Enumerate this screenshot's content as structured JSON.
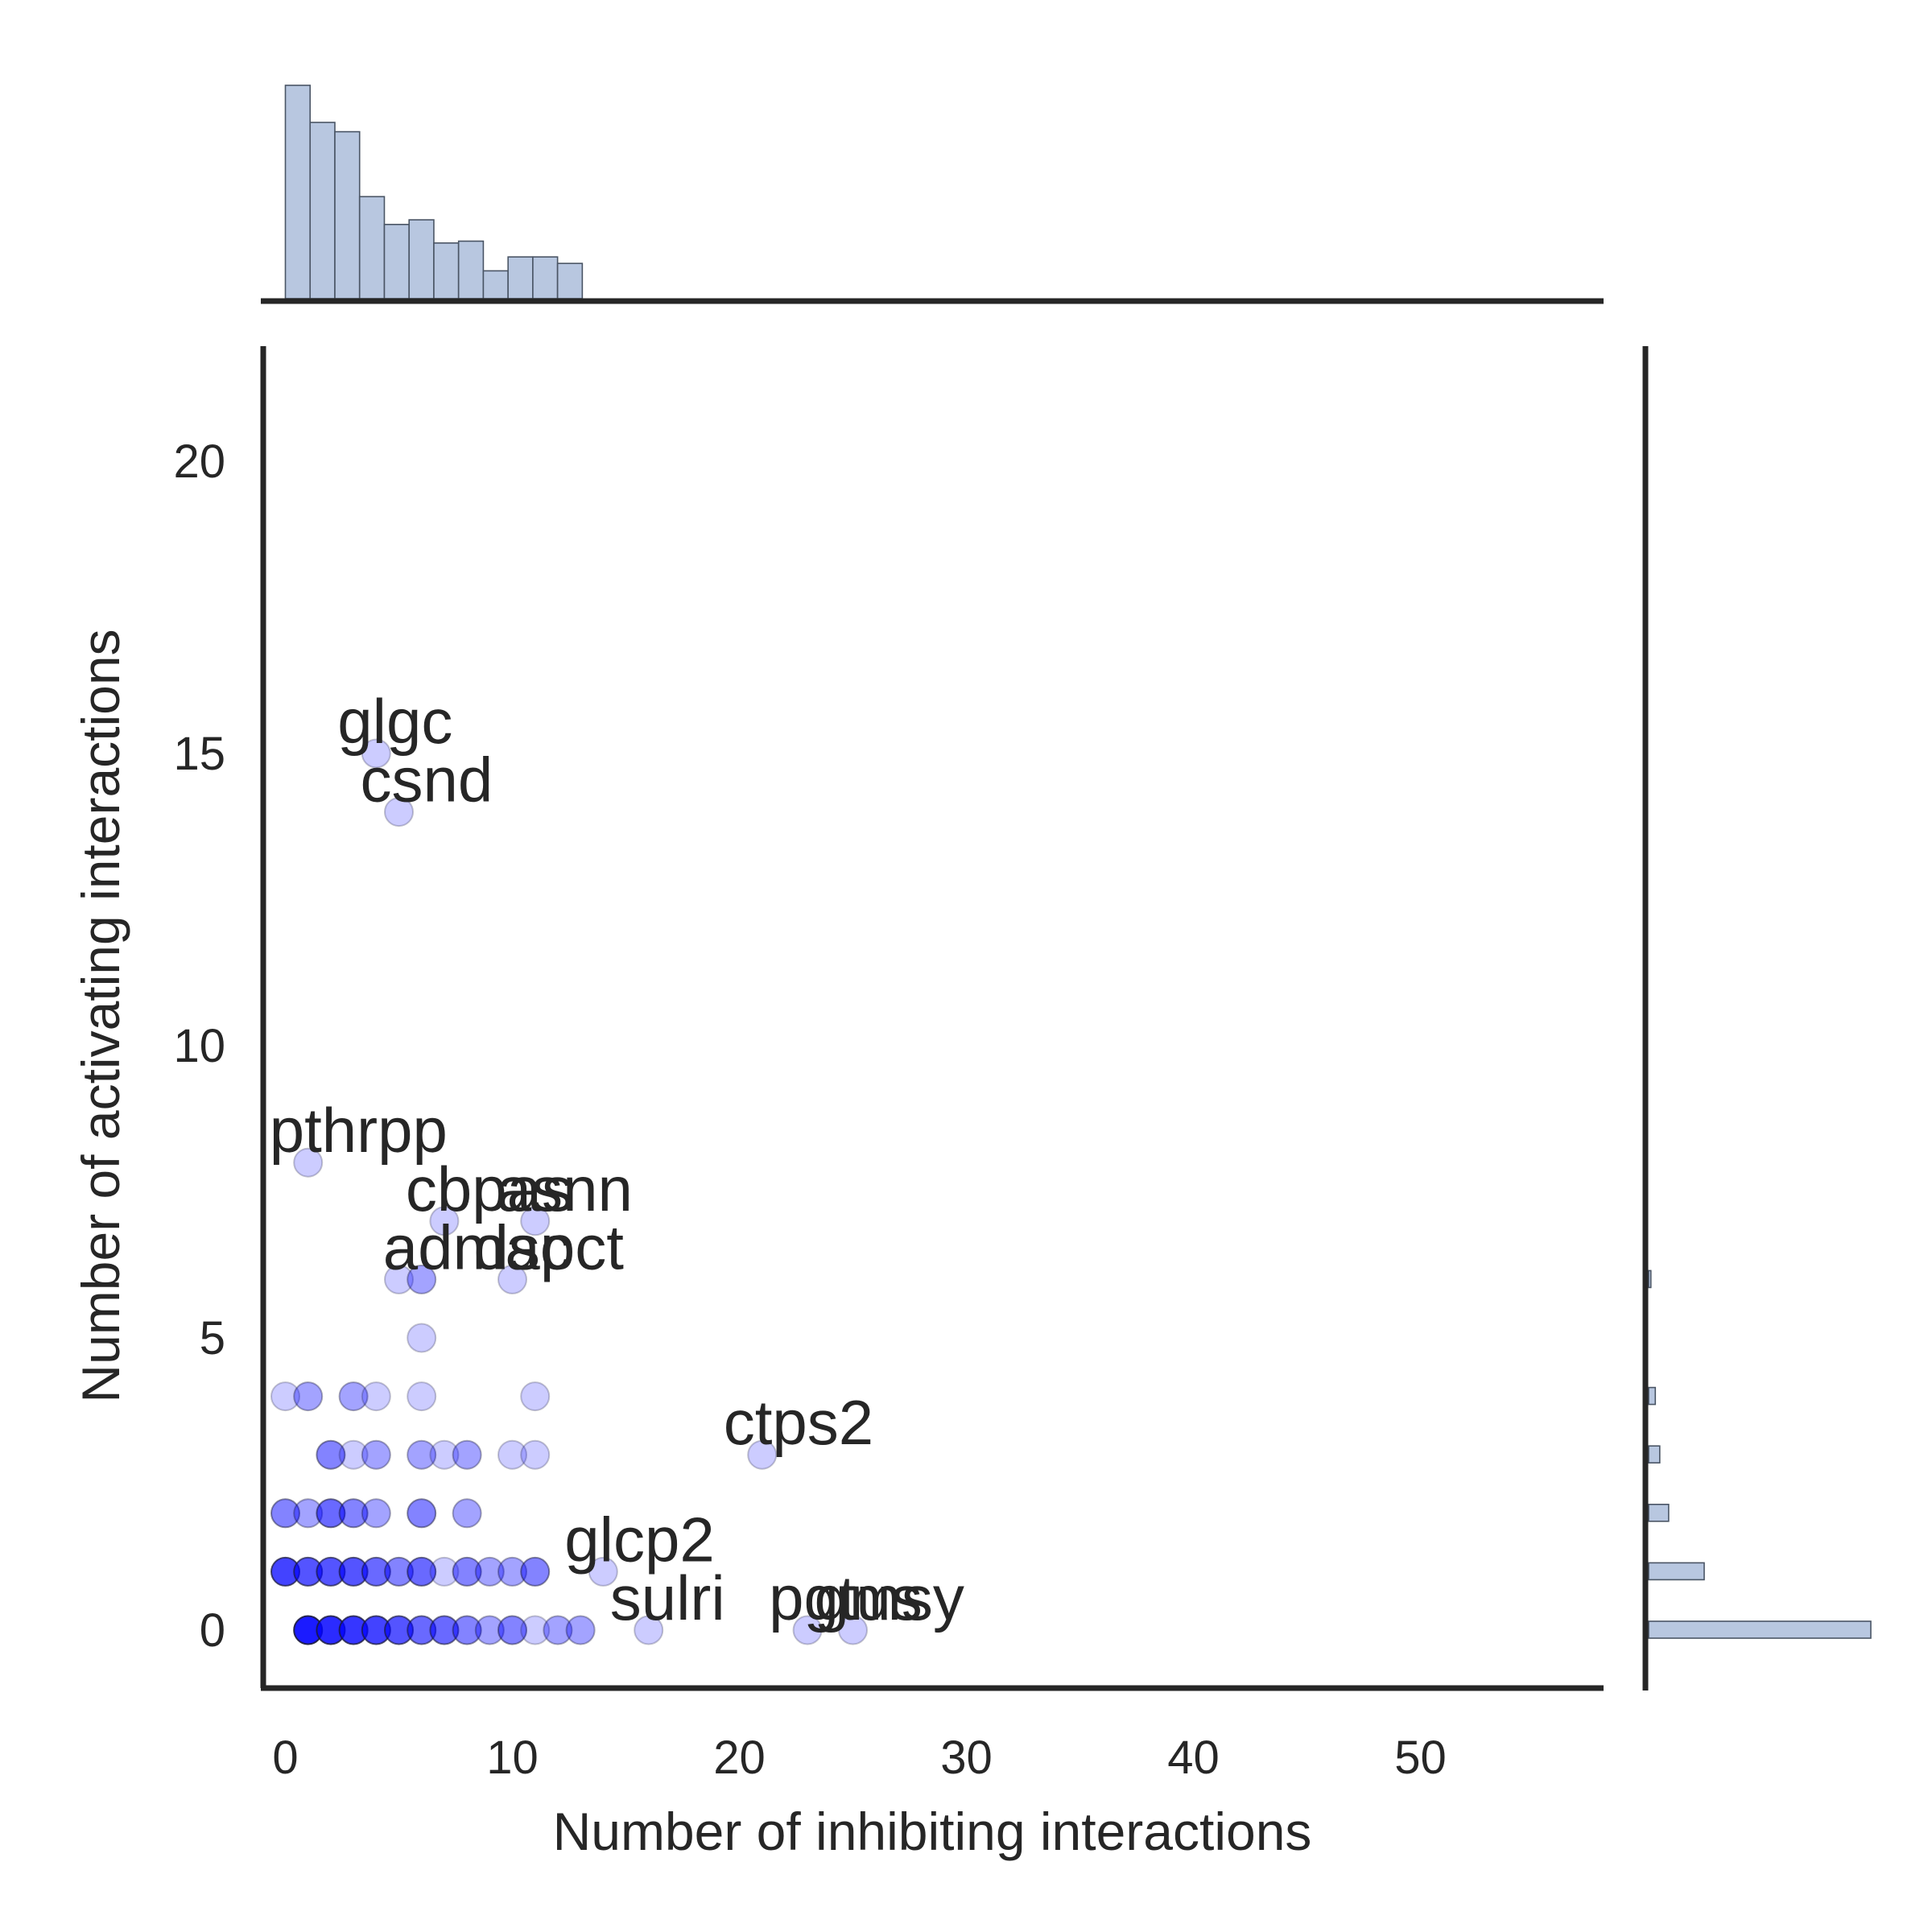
{
  "chart_data": {
    "type": "scatter",
    "title": "",
    "xlabel": "Number of inhibiting interactions",
    "ylabel": "Number of activating interactions",
    "xlim": [
      -1,
      58
    ],
    "ylim": [
      -1,
      22
    ],
    "xticks": [
      0,
      10,
      20,
      30,
      40,
      50
    ],
    "yticks": [
      0,
      5,
      10,
      15,
      20
    ],
    "grid": false,
    "point_color": "#0000ff",
    "hist_color": "#b8c7e0",
    "points": [
      {
        "x": 1,
        "y": 0,
        "count": 10
      },
      {
        "x": 2,
        "y": 0,
        "count": 8
      },
      {
        "x": 3,
        "y": 0,
        "count": 7
      },
      {
        "x": 4,
        "y": 0,
        "count": 6
      },
      {
        "x": 5,
        "y": 0,
        "count": 5
      },
      {
        "x": 6,
        "y": 0,
        "count": 4
      },
      {
        "x": 7,
        "y": 0,
        "count": 4
      },
      {
        "x": 8,
        "y": 0,
        "count": 3
      },
      {
        "x": 9,
        "y": 0,
        "count": 2
      },
      {
        "x": 10,
        "y": 0,
        "count": 3
      },
      {
        "x": 11,
        "y": 0,
        "count": 1
      },
      {
        "x": 12,
        "y": 0,
        "count": 2
      },
      {
        "x": 13,
        "y": 0,
        "count": 2
      },
      {
        "x": 16,
        "y": 0,
        "count": 1
      },
      {
        "x": 23,
        "y": 0,
        "count": 1
      },
      {
        "x": 25,
        "y": 0,
        "count": 1
      },
      {
        "x": 0,
        "y": 1,
        "count": 6
      },
      {
        "x": 1,
        "y": 1,
        "count": 5
      },
      {
        "x": 2,
        "y": 1,
        "count": 5
      },
      {
        "x": 3,
        "y": 1,
        "count": 5
      },
      {
        "x": 4,
        "y": 1,
        "count": 4
      },
      {
        "x": 5,
        "y": 1,
        "count": 3
      },
      {
        "x": 6,
        "y": 1,
        "count": 4
      },
      {
        "x": 7,
        "y": 1,
        "count": 1
      },
      {
        "x": 8,
        "y": 1,
        "count": 3
      },
      {
        "x": 9,
        "y": 1,
        "count": 2
      },
      {
        "x": 10,
        "y": 1,
        "count": 2
      },
      {
        "x": 11,
        "y": 1,
        "count": 3
      },
      {
        "x": 14,
        "y": 1,
        "count": 1
      },
      {
        "x": 0,
        "y": 2,
        "count": 3
      },
      {
        "x": 1,
        "y": 2,
        "count": 2
      },
      {
        "x": 2,
        "y": 2,
        "count": 4
      },
      {
        "x": 3,
        "y": 2,
        "count": 3
      },
      {
        "x": 4,
        "y": 2,
        "count": 2
      },
      {
        "x": 6,
        "y": 2,
        "count": 3
      },
      {
        "x": 8,
        "y": 2,
        "count": 2
      },
      {
        "x": 2,
        "y": 3,
        "count": 3
      },
      {
        "x": 3,
        "y": 3,
        "count": 1
      },
      {
        "x": 4,
        "y": 3,
        "count": 2
      },
      {
        "x": 6,
        "y": 3,
        "count": 2
      },
      {
        "x": 7,
        "y": 3,
        "count": 1
      },
      {
        "x": 8,
        "y": 3,
        "count": 2
      },
      {
        "x": 10,
        "y": 3,
        "count": 1
      },
      {
        "x": 11,
        "y": 3,
        "count": 1
      },
      {
        "x": 21,
        "y": 3,
        "count": 1
      },
      {
        "x": 0,
        "y": 4,
        "count": 1
      },
      {
        "x": 1,
        "y": 4,
        "count": 2
      },
      {
        "x": 3,
        "y": 4,
        "count": 2
      },
      {
        "x": 4,
        "y": 4,
        "count": 1
      },
      {
        "x": 6,
        "y": 4,
        "count": 1
      },
      {
        "x": 11,
        "y": 4,
        "count": 1
      },
      {
        "x": 6,
        "y": 5,
        "count": 1
      },
      {
        "x": 5,
        "y": 6,
        "count": 1
      },
      {
        "x": 6,
        "y": 6,
        "count": 2
      },
      {
        "x": 10,
        "y": 6,
        "count": 1
      },
      {
        "x": 7,
        "y": 7,
        "count": 1
      },
      {
        "x": 11,
        "y": 7,
        "count": 1
      },
      {
        "x": 1,
        "y": 8,
        "count": 1
      },
      {
        "x": 5,
        "y": 14,
        "count": 1
      },
      {
        "x": 4,
        "y": 15,
        "count": 1
      }
    ],
    "annotations": [
      {
        "text": "glgc",
        "x": 4,
        "y": 15
      },
      {
        "text": "csnd",
        "x": 5,
        "y": 14
      },
      {
        "text": "pthrpp",
        "x": 1,
        "y": 8
      },
      {
        "text": "cbpas",
        "x": 7,
        "y": 7
      },
      {
        "text": "asnn",
        "x": 11,
        "y": 7
      },
      {
        "text": "admac",
        "x": 6,
        "y": 6
      },
      {
        "text": "dspct",
        "x": 10,
        "y": 6
      },
      {
        "text": "ctps2",
        "x": 21,
        "y": 3
      },
      {
        "text": "glcp2",
        "x": 14,
        "y": 1
      },
      {
        "text": "sulri",
        "x": 16,
        "y": 0
      },
      {
        "text": "pgtus",
        "x": 23,
        "y": 0
      },
      {
        "text": "gmsy",
        "x": 25,
        "y": 0
      }
    ],
    "marginal_x_hist": {
      "bin_start": 0,
      "bin_width": 1.09,
      "counts": [
        23,
        19,
        18,
        11,
        8,
        8.5,
        6,
        6.2,
        3,
        4.5,
        4.5,
        3.8
      ]
    },
    "marginal_y_hist": {
      "bins": [
        {
          "y": 0,
          "count": 100
        },
        {
          "y": 1,
          "count": 25
        },
        {
          "y": 2,
          "count": 9
        },
        {
          "y": 3,
          "count": 5
        },
        {
          "y": 4,
          "count": 3
        },
        {
          "y": 6,
          "count": 1
        }
      ]
    }
  }
}
